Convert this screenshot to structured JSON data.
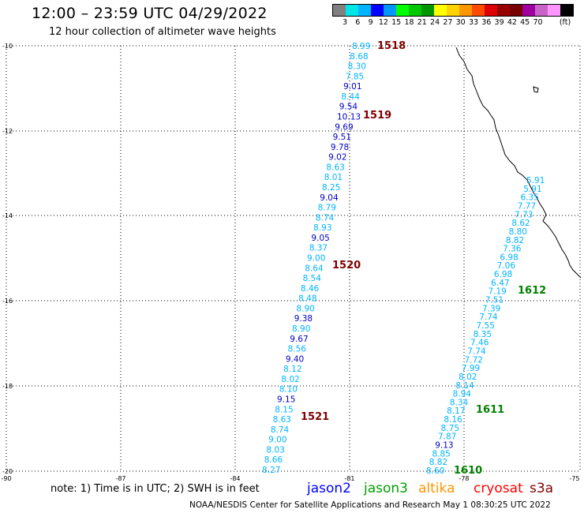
{
  "header": {
    "title": "12:00 – 23:59 UTC 04/29/2022",
    "subtitle": "12 hour collection of altimeter wave heights"
  },
  "legend": {
    "colors": [
      "#808080",
      "#00e6e6",
      "#00b4ff",
      "#0000ff",
      "#0096ff",
      "#00ff00",
      "#00c800",
      "#009600",
      "#ffff00",
      "#ffd200",
      "#ff9600",
      "#ff4b00",
      "#dc0000",
      "#960000",
      "#780000",
      "#a000a0",
      "#c864c8",
      "#ff96ff",
      "#000000"
    ],
    "ticks": [
      "3",
      "6",
      "9",
      "12",
      "15",
      "18",
      "21",
      "24",
      "27",
      "30",
      "33",
      "36",
      "39",
      "42",
      "45",
      "70"
    ],
    "unit": "(ft)"
  },
  "axes": {
    "lat_labels": [
      "-10",
      "-12",
      "-14",
      "-16",
      "-18",
      "-20"
    ],
    "lon_labels": [
      "-90",
      "-87",
      "-84",
      "-81",
      "-78",
      "-75"
    ]
  },
  "tracks": {
    "west": {
      "values": [
        "8.99",
        "8.68",
        "8.30",
        "7.85",
        "9.01",
        "8.44",
        "9.54",
        "10.13",
        "9.69",
        "9.51",
        "9.78",
        "9.02",
        "8.63",
        "8.01",
        "8.25",
        "9.04",
        "8.79",
        "8.74",
        "8.93",
        "9.05",
        "8.37",
        "9.00",
        "8.64",
        "8.54",
        "8.46",
        "8.48",
        "8.90",
        "9.38",
        "8.90",
        "9.67",
        "8.56",
        "9.40",
        "8.12",
        "8.02",
        "8.10",
        "9.15",
        "8.15",
        "8.63",
        "8.74",
        "9.00",
        "8.03",
        "8.66",
        "8.27"
      ],
      "colors": [
        "#00b4ff",
        "#00b4ff",
        "#00b4ff",
        "#00b4ff",
        "#0000c8",
        "#00b4ff",
        "#0000c8",
        "#0000c8",
        "#0000c8",
        "#0000c8",
        "#0000c8",
        "#0000c8",
        "#00b4ff",
        "#00b4ff",
        "#00b4ff",
        "#0000c8",
        "#00b4ff",
        "#00b4ff",
        "#00b4ff",
        "#0000c8",
        "#00b4ff",
        "#00b4ff",
        "#00b4ff",
        "#00b4ff",
        "#00b4ff",
        "#00b4ff",
        "#00b4ff",
        "#0000c8",
        "#00b4ff",
        "#0000c8",
        "#00b4ff",
        "#0000c8",
        "#00b4ff",
        "#00b4ff",
        "#00b4ff",
        "#0000c8",
        "#00b4ff",
        "#00b4ff",
        "#00b4ff",
        "#00b4ff",
        "#00b4ff",
        "#00b4ff",
        "#00b4ff"
      ]
    },
    "east": {
      "values": [
        "5.91",
        "5.91",
        "6.35",
        "7.77",
        "7.73",
        "8.62",
        "8.80",
        "8.82",
        "7.36",
        "6.98",
        "7.06",
        "6.98",
        "6.47",
        "7.19",
        "7.51",
        "7.39",
        "7.74",
        "7.55",
        "8.35",
        "7.46",
        "7.74",
        "7.72",
        "7.99",
        "8.02",
        "8.14",
        "8.94",
        "8.34",
        "8.17",
        "8.16",
        "8.75",
        "7.87",
        "9.13",
        "8.85",
        "8.82",
        "8.60"
      ],
      "colors": [
        "#00b4ff",
        "#00b4ff",
        "#00b4ff",
        "#00b4ff",
        "#00b4ff",
        "#00b4ff",
        "#00b4ff",
        "#00b4ff",
        "#00b4ff",
        "#00b4ff",
        "#00b4ff",
        "#00b4ff",
        "#00b4ff",
        "#00b4ff",
        "#00b4ff",
        "#00b4ff",
        "#00b4ff",
        "#00b4ff",
        "#00b4ff",
        "#00b4ff",
        "#00b4ff",
        "#00b4ff",
        "#00b4ff",
        "#00b4ff",
        "#00b4ff",
        "#00b4ff",
        "#00b4ff",
        "#00b4ff",
        "#00b4ff",
        "#00b4ff",
        "#00b4ff",
        "#0000c8",
        "#00b4ff",
        "#00b4ff",
        "#00b4ff"
      ]
    }
  },
  "pass_labels": [
    {
      "text": "1518",
      "color": "#800000"
    },
    {
      "text": "1519",
      "color": "#800000"
    },
    {
      "text": "1520",
      "color": "#800000"
    },
    {
      "text": "1521",
      "color": "#800000"
    },
    {
      "text": "1612",
      "color": "#008000"
    },
    {
      "text": "1611",
      "color": "#008000"
    },
    {
      "text": "1610",
      "color": "#008000"
    }
  ],
  "footer": {
    "note": "note: 1) Time is in UTC; 2) SWH is in feet",
    "satellites": [
      {
        "name": "jason2",
        "color": "#0000ff"
      },
      {
        "name": "jason3",
        "color": "#00a000"
      },
      {
        "name": "altika",
        "color": "#ff9600"
      },
      {
        "name": "cryosat",
        "color": "#ff0000"
      },
      {
        "name": "s3a",
        "color": "#800000"
      }
    ],
    "credit": "NOAA/NESDIS Center for Satellite Applications and Research    May  1 08:30:25 UTC 2022"
  }
}
